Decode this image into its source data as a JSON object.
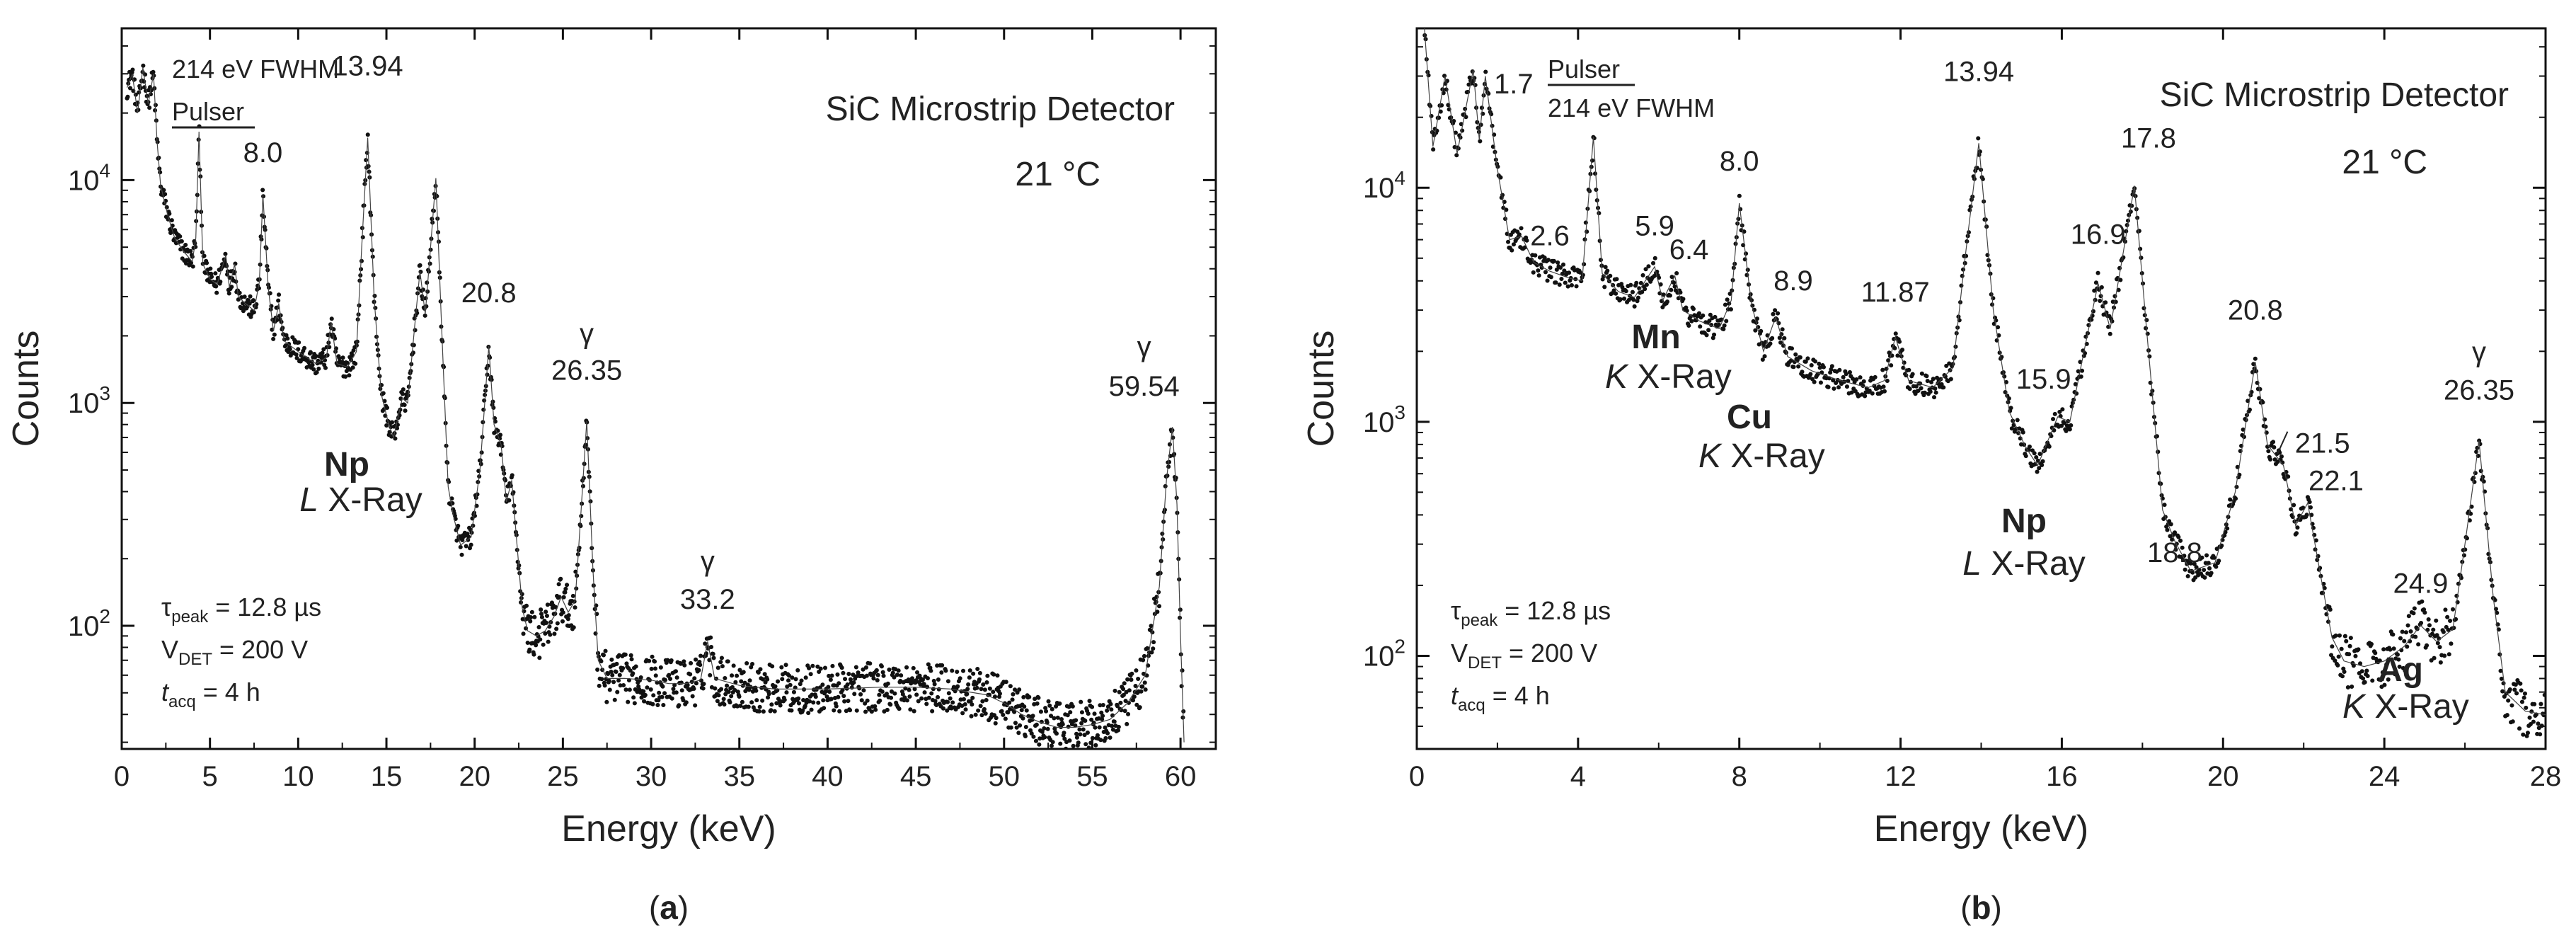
{
  "chart_data": [
    {
      "type": "scatter",
      "panel_label": "(a)",
      "panel_letter": "a",
      "xlabel": "Energy (keV)",
      "ylabel": "Counts",
      "yscale": "log",
      "xlim": [
        0,
        62
      ],
      "ylim": [
        28,
        48000
      ],
      "xticks": [
        0,
        5,
        10,
        15,
        20,
        25,
        30,
        35,
        40,
        45,
        50,
        55,
        60
      ],
      "yticks": [
        {
          "value": 100,
          "base": "10",
          "exp": "2"
        },
        {
          "value": 1000,
          "base": "10",
          "exp": "3"
        },
        {
          "value": 10000,
          "base": "10",
          "exp": "4"
        }
      ],
      "annotations": {
        "detector": "SiC Microstrip Detector",
        "temperature": "21 °C",
        "fwhm": "214 eV FWHM",
        "pulser": "Pulser",
        "xray_element": "Np",
        "xray_line": "L X-Ray",
        "tau_sym": "τ",
        "tau_sub": "peak",
        "tau_val": " = 12.8 µs",
        "v_sym": "V",
        "v_sub": "DET",
        "v_val": " = 200 V",
        "t_sym": "t",
        "t_sub": "acq",
        "t_val": " = 4 h",
        "gamma": "γ"
      },
      "peak_labels": [
        {
          "text": "8.0",
          "x": 8.0,
          "y": 8600
        },
        {
          "text": "13.94",
          "x": 13.94,
          "y": 15500
        },
        {
          "text": "20.8",
          "x": 20.8,
          "y": 1800
        },
        {
          "text": "26.35",
          "x": 26.35,
          "y": 830
        },
        {
          "text": "33.2",
          "x": 33.2,
          "y": 85
        },
        {
          "text": "59.54",
          "x": 59.54,
          "y": 780
        }
      ],
      "gamma_labels": [
        26.35,
        33.2,
        59.54
      ],
      "spectrum": [
        [
          0.3,
          26000
        ],
        [
          0.6,
          30000
        ],
        [
          0.9,
          20000
        ],
        [
          1.2,
          32000
        ],
        [
          1.5,
          22000
        ],
        [
          1.8,
          30000
        ],
        [
          2.0,
          15000
        ],
        [
          2.2,
          9500
        ],
        [
          2.6,
          7000
        ],
        [
          3.0,
          5500
        ],
        [
          3.5,
          4800
        ],
        [
          4.0,
          4300
        ],
        [
          4.2,
          5500
        ],
        [
          4.38,
          16500
        ],
        [
          4.6,
          4200
        ],
        [
          5.0,
          3600
        ],
        [
          5.4,
          3400
        ],
        [
          5.9,
          4600
        ],
        [
          6.1,
          3300
        ],
        [
          6.4,
          4200
        ],
        [
          6.6,
          3000
        ],
        [
          7.0,
          2800
        ],
        [
          7.5,
          2600
        ],
        [
          7.8,
          3500
        ],
        [
          8.0,
          8600
        ],
        [
          8.3,
          3300
        ],
        [
          8.6,
          2100
        ],
        [
          8.9,
          2800
        ],
        [
          9.2,
          1900
        ],
        [
          10.0,
          1700
        ],
        [
          11.0,
          1500
        ],
        [
          11.6,
          1600
        ],
        [
          11.87,
          2300
        ],
        [
          12.2,
          1500
        ],
        [
          12.8,
          1450
        ],
        [
          13.3,
          1700
        ],
        [
          13.6,
          5000
        ],
        [
          13.94,
          15500
        ],
        [
          14.3,
          3000
        ],
        [
          14.7,
          1100
        ],
        [
          15.1,
          820
        ],
        [
          15.4,
          700
        ],
        [
          15.9,
          1050
        ],
        [
          16.2,
          1000
        ],
        [
          16.6,
          2200
        ],
        [
          16.9,
          3900
        ],
        [
          17.2,
          2500
        ],
        [
          17.5,
          5000
        ],
        [
          17.8,
          10200
        ],
        [
          18.1,
          2500
        ],
        [
          18.5,
          420
        ],
        [
          18.8,
          310
        ],
        [
          19.2,
          230
        ],
        [
          19.8,
          250
        ],
        [
          20.3,
          500
        ],
        [
          20.8,
          1800
        ],
        [
          21.1,
          800
        ],
        [
          21.5,
          650
        ],
        [
          21.8,
          360
        ],
        [
          22.1,
          450
        ],
        [
          22.4,
          230
        ],
        [
          22.7,
          120
        ],
        [
          23.0,
          95
        ],
        [
          23.5,
          90
        ],
        [
          24.0,
          95
        ],
        [
          24.5,
          110
        ],
        [
          24.9,
          135
        ],
        [
          25.3,
          115
        ],
        [
          25.7,
          130
        ],
        [
          26.0,
          300
        ],
        [
          26.35,
          830
        ],
        [
          26.7,
          180
        ],
        [
          27.0,
          70
        ],
        [
          27.5,
          58
        ],
        [
          28.5,
          58
        ],
        [
          30.0,
          57
        ],
        [
          31.0,
          55
        ],
        [
          32.0,
          55
        ],
        [
          32.8,
          57
        ],
        [
          33.2,
          85
        ],
        [
          33.6,
          58
        ],
        [
          35.0,
          54
        ],
        [
          37.0,
          52
        ],
        [
          40.0,
          52
        ],
        [
          43.0,
          53
        ],
        [
          45.0,
          53
        ],
        [
          47.0,
          52
        ],
        [
          49.0,
          49
        ],
        [
          50.0,
          45
        ],
        [
          51.0,
          40
        ],
        [
          52.0,
          37
        ],
        [
          53.0,
          35
        ],
        [
          54.0,
          35
        ],
        [
          55.0,
          36
        ],
        [
          56.0,
          38
        ],
        [
          57.0,
          45
        ],
        [
          58.0,
          60
        ],
        [
          58.8,
          150
        ],
        [
          59.2,
          450
        ],
        [
          59.54,
          780
        ],
        [
          59.8,
          350
        ],
        [
          60.0,
          90
        ],
        [
          60.2,
          30
        ]
      ]
    },
    {
      "type": "scatter",
      "panel_label": "(b)",
      "panel_letter": "b",
      "xlabel": "Energy (keV)",
      "ylabel": "Counts",
      "yscale": "log",
      "xlim": [
        0,
        28
      ],
      "ylim": [
        40,
        48000
      ],
      "xticks": [
        0,
        4,
        8,
        12,
        16,
        20,
        24,
        28
      ],
      "yticks": [
        {
          "value": 100,
          "base": "10",
          "exp": "2"
        },
        {
          "value": 1000,
          "base": "10",
          "exp": "3"
        },
        {
          "value": 10000,
          "base": "10",
          "exp": "4"
        }
      ],
      "annotations": {
        "detector": "SiC Microstrip Detector",
        "temperature": "21 °C",
        "fwhm": "214 eV FWHM",
        "pulser": "Pulser",
        "np_element": "Np",
        "np_line": "L X-Ray",
        "mn_element": "Mn",
        "mn_line": "X-Ray",
        "cu_element": "Cu",
        "cu_line": "X-Ray",
        "ag_element": "Ag",
        "ag_line": "X-Ray",
        "k_letter": "K",
        "tau_sym": "τ",
        "tau_sub": "peak",
        "tau_val": " = 12.8 µs",
        "v_sym": "V",
        "v_sub": "DET",
        "v_val": " = 200 V",
        "t_sym": "t",
        "t_sub": "acq",
        "t_val": " = 4 h",
        "gamma": "γ"
      },
      "peak_labels": [
        {
          "text": "1.7",
          "x": 1.7,
          "y": 32000
        },
        {
          "text": "2.6",
          "x": 2.6,
          "y": 6000
        },
        {
          "text": "5.9",
          "x": 5.9,
          "y": 4600
        },
        {
          "text": "6.4",
          "x": 6.4,
          "y": 4200
        },
        {
          "text": "8.0",
          "x": 8.0,
          "y": 8600
        },
        {
          "text": "8.9",
          "x": 8.9,
          "y": 2800
        },
        {
          "text": "11.87",
          "x": 11.87,
          "y": 2300
        },
        {
          "text": "13.94",
          "x": 13.94,
          "y": 15500
        },
        {
          "text": "15.9",
          "x": 15.9,
          "y": 1050
        },
        {
          "text": "16.9",
          "x": 16.9,
          "y": 3900
        },
        {
          "text": "17.8",
          "x": 17.8,
          "y": 10200
        },
        {
          "text": "18.8",
          "x": 18.8,
          "y": 310
        },
        {
          "text": "20.8",
          "x": 20.8,
          "y": 1800
        },
        {
          "text": "21.5",
          "x": 21.5,
          "y": 650
        },
        {
          "text": "22.1",
          "x": 22.1,
          "y": 450
        },
        {
          "text": "24.9",
          "x": 24.9,
          "y": 135
        },
        {
          "text": "26.35",
          "x": 26.35,
          "y": 830
        }
      ],
      "gamma_labels": [
        26.35
      ],
      "spectrum": [
        [
          0.15,
          60000
        ],
        [
          0.4,
          15000
        ],
        [
          0.7,
          30000
        ],
        [
          1.0,
          14000
        ],
        [
          1.4,
          32000
        ],
        [
          1.55,
          16000
        ],
        [
          1.7,
          30000
        ],
        [
          2.0,
          12000
        ],
        [
          2.3,
          6000
        ],
        [
          2.6,
          6200
        ],
        [
          2.9,
          4800
        ],
        [
          3.3,
          4400
        ],
        [
          3.8,
          4100
        ],
        [
          4.1,
          4000
        ],
        [
          4.38,
          16500
        ],
        [
          4.6,
          4300
        ],
        [
          5.0,
          3600
        ],
        [
          5.4,
          3400
        ],
        [
          5.9,
          4600
        ],
        [
          6.1,
          3300
        ],
        [
          6.4,
          4200
        ],
        [
          6.6,
          3000
        ],
        [
          7.0,
          2700
        ],
        [
          7.5,
          2500
        ],
        [
          7.8,
          3300
        ],
        [
          8.0,
          8600
        ],
        [
          8.3,
          3200
        ],
        [
          8.6,
          2000
        ],
        [
          8.9,
          2800
        ],
        [
          9.2,
          1900
        ],
        [
          9.8,
          1650
        ],
        [
          10.5,
          1500
        ],
        [
          11.2,
          1400
        ],
        [
          11.6,
          1500
        ],
        [
          11.87,
          2300
        ],
        [
          12.2,
          1500
        ],
        [
          12.8,
          1400
        ],
        [
          13.3,
          1700
        ],
        [
          13.6,
          5000
        ],
        [
          13.94,
          15500
        ],
        [
          14.3,
          3000
        ],
        [
          14.7,
          1100
        ],
        [
          15.1,
          780
        ],
        [
          15.4,
          650
        ],
        [
          15.9,
          1050
        ],
        [
          16.2,
          1000
        ],
        [
          16.6,
          2200
        ],
        [
          16.9,
          3900
        ],
        [
          17.2,
          2500
        ],
        [
          17.5,
          5000
        ],
        [
          17.8,
          10200
        ],
        [
          18.1,
          2500
        ],
        [
          18.5,
          420
        ],
        [
          18.8,
          310
        ],
        [
          19.2,
          230
        ],
        [
          19.8,
          250
        ],
        [
          20.3,
          500
        ],
        [
          20.8,
          1800
        ],
        [
          21.1,
          800
        ],
        [
          21.5,
          650
        ],
        [
          21.8,
          360
        ],
        [
          22.1,
          450
        ],
        [
          22.4,
          230
        ],
        [
          22.7,
          120
        ],
        [
          23.0,
          95
        ],
        [
          23.5,
          90
        ],
        [
          24.0,
          95
        ],
        [
          24.5,
          110
        ],
        [
          24.9,
          135
        ],
        [
          25.3,
          115
        ],
        [
          25.7,
          130
        ],
        [
          26.0,
          300
        ],
        [
          26.35,
          830
        ],
        [
          26.7,
          180
        ],
        [
          27.0,
          70
        ],
        [
          27.5,
          58
        ],
        [
          28.0,
          56
        ]
      ]
    }
  ]
}
